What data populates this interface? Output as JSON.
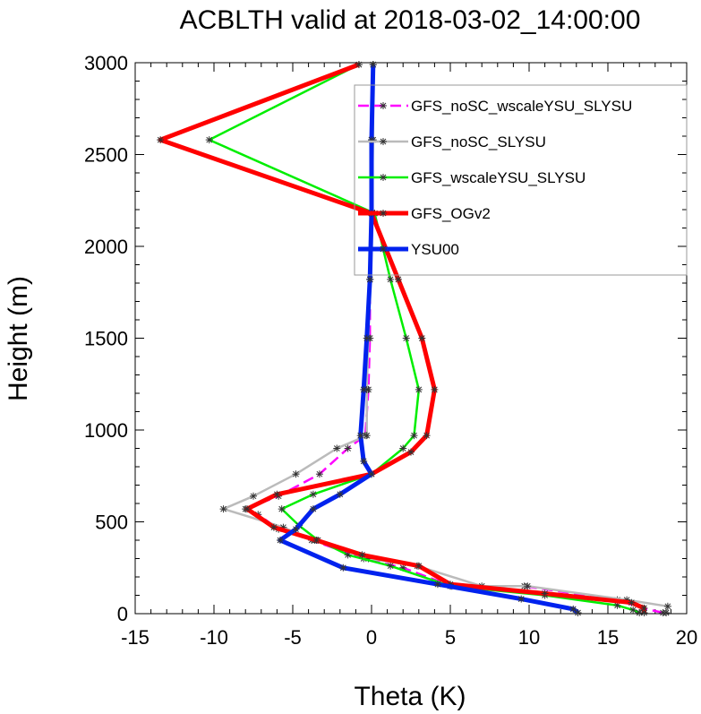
{
  "chart_data": {
    "type": "line",
    "title": "ACBLTH valid at 2018-03-02_14:00:00",
    "xlabel": "Theta (K)",
    "ylabel": "Height (m)",
    "xlim": [
      -15,
      20
    ],
    "ylim": [
      0,
      3000
    ],
    "xticks": [
      "-15",
      "-10",
      "-5",
      "0",
      "5",
      "10",
      "15",
      "20"
    ],
    "yticks": [
      "0",
      "500",
      "1000",
      "1500",
      "2000",
      "2500",
      "3000"
    ],
    "grid": false,
    "legend_position": "top-right",
    "series": [
      {
        "name": "GFS_noSC_wscaleYSU_SLYSU",
        "color": "#ff00ff",
        "dash": "dashed",
        "width": 2.5,
        "points": [
          [
            18.5,
            5
          ],
          [
            17.2,
            30
          ],
          [
            15.6,
            75
          ],
          [
            9.7,
            150
          ],
          [
            5.1,
            150
          ],
          [
            2.0,
            250
          ],
          [
            -0.5,
            300
          ],
          [
            -3.8,
            400
          ],
          [
            -5.9,
            460
          ],
          [
            -7.2,
            540
          ],
          [
            -8.0,
            570
          ],
          [
            -5.9,
            640
          ],
          [
            -3.3,
            760
          ],
          [
            -1.5,
            900
          ],
          [
            -0.4,
            970
          ],
          [
            -0.2,
            1220
          ],
          [
            -0.1,
            1500
          ],
          [
            -0.1,
            1820
          ],
          [
            0.0,
            2180
          ],
          [
            0.0,
            2580
          ],
          [
            0.1,
            2990
          ]
        ]
      },
      {
        "name": "GFS_noSC_SLYSU",
        "color": "#bbbbbb",
        "dash": "solid",
        "width": 2.5,
        "points": [
          [
            18.7,
            5
          ],
          [
            18.8,
            40
          ],
          [
            16.2,
            75
          ],
          [
            9.9,
            150
          ],
          [
            7.0,
            150
          ],
          [
            2.9,
            260
          ],
          [
            -0.2,
            300
          ],
          [
            -3.6,
            400
          ],
          [
            -5.6,
            470
          ],
          [
            -9.4,
            570
          ],
          [
            -7.5,
            640
          ],
          [
            -4.8,
            760
          ],
          [
            -2.2,
            900
          ],
          [
            -0.3,
            970
          ],
          [
            -0.3,
            1220
          ],
          [
            -0.2,
            1500
          ],
          [
            -0.1,
            1820
          ],
          [
            0.0,
            2180
          ],
          [
            0.1,
            2580
          ],
          [
            0.1,
            2990
          ]
        ]
      },
      {
        "name": "GFS_wscaleYSU_SLYSU",
        "color": "#00ee00",
        "dash": "solid",
        "width": 2.5,
        "points": [
          [
            17.0,
            5
          ],
          [
            16.6,
            20
          ],
          [
            15.6,
            45
          ],
          [
            11.0,
            100
          ],
          [
            5.0,
            150
          ],
          [
            1.2,
            260
          ],
          [
            -1.5,
            320
          ],
          [
            -3.4,
            400
          ],
          [
            -4.6,
            480
          ],
          [
            -5.7,
            570
          ],
          [
            -3.7,
            650
          ],
          [
            0.0,
            760
          ],
          [
            2.0,
            900
          ],
          [
            2.7,
            970
          ],
          [
            3.0,
            1220
          ],
          [
            2.2,
            1500
          ],
          [
            1.2,
            1820
          ],
          [
            0.2,
            2180
          ],
          [
            -10.3,
            2580
          ],
          [
            -0.8,
            2990
          ]
        ]
      },
      {
        "name": "GFS_OGv2",
        "color": "#ff0000",
        "dash": "solid",
        "width": 5,
        "points": [
          [
            17.3,
            5
          ],
          [
            17.3,
            30
          ],
          [
            16.5,
            60
          ],
          [
            11.0,
            110
          ],
          [
            5.0,
            160
          ],
          [
            3.0,
            260
          ],
          [
            -0.6,
            320
          ],
          [
            -3.5,
            400
          ],
          [
            -6.2,
            470
          ],
          [
            -7.9,
            570
          ],
          [
            -6.0,
            650
          ],
          [
            0.0,
            760
          ],
          [
            2.5,
            880
          ],
          [
            3.5,
            970
          ],
          [
            4.0,
            1220
          ],
          [
            3.2,
            1500
          ],
          [
            1.7,
            1820
          ],
          [
            0.0,
            2180
          ],
          [
            -13.4,
            2580
          ],
          [
            -0.8,
            2990
          ]
        ]
      },
      {
        "name": "YSU00",
        "color": "#0022ee",
        "dash": "solid",
        "width": 5,
        "points": [
          [
            13.1,
            5
          ],
          [
            12.8,
            25
          ],
          [
            9.5,
            80
          ],
          [
            4.2,
            160
          ],
          [
            -1.8,
            250
          ],
          [
            -5.8,
            400
          ],
          [
            -4.8,
            460
          ],
          [
            -3.7,
            570
          ],
          [
            -2.0,
            650
          ],
          [
            0.0,
            760
          ],
          [
            -0.5,
            830
          ],
          [
            -0.7,
            970
          ],
          [
            -0.5,
            1220
          ],
          [
            -0.3,
            1500
          ],
          [
            -0.1,
            1820
          ],
          [
            0.0,
            2180
          ],
          [
            0.0,
            2580
          ],
          [
            0.1,
            2990
          ]
        ]
      }
    ]
  }
}
